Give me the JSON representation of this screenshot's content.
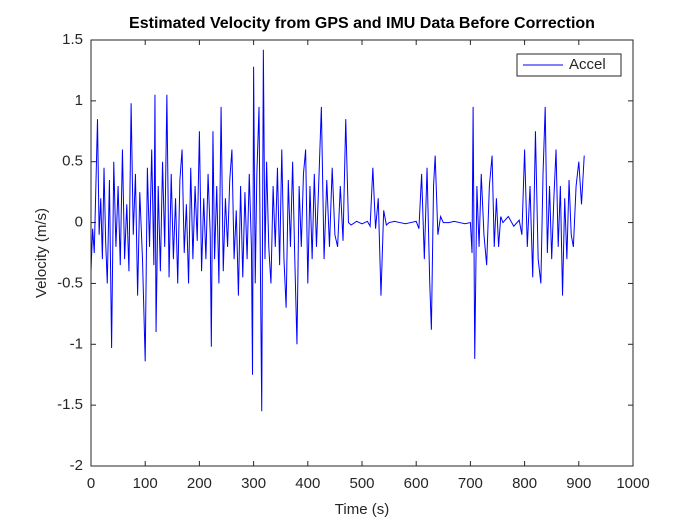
{
  "chart_data": {
    "type": "line",
    "title": "Estimated Velocity from GPS and IMU Data Before Correction",
    "x_label": "Time (s)",
    "y_label": "Velocity (m/s)",
    "xlim": [
      0,
      1000
    ],
    "xticks": [
      0,
      100,
      200,
      300,
      400,
      500,
      600,
      700,
      800,
      900,
      1000
    ],
    "ylim": [
      -2,
      1.5
    ],
    "yticks": [
      -2,
      -1.5,
      -1,
      -0.5,
      0,
      0.5,
      1,
      1.5
    ],
    "legend_position": "top-right",
    "grid": false,
    "series": [
      {
        "name": "Accel",
        "color": "#0000ff",
        "x": [
          0,
          3,
          6,
          9,
          12,
          15,
          18,
          21,
          24,
          27,
          30,
          34,
          38,
          42,
          46,
          50,
          54,
          58,
          62,
          66,
          70,
          74,
          78,
          82,
          86,
          90,
          95,
          100,
          104,
          108,
          112,
          116,
          118,
          120,
          124,
          128,
          132,
          136,
          140,
          144,
          148,
          152,
          156,
          160,
          164,
          168,
          172,
          176,
          180,
          184,
          188,
          192,
          196,
          200,
          204,
          208,
          212,
          216,
          220,
          222,
          225,
          228,
          232,
          236,
          240,
          244,
          248,
          252,
          256,
          260,
          264,
          268,
          272,
          276,
          280,
          284,
          288,
          292,
          296,
          298,
          300,
          303,
          306,
          310,
          313,
          315,
          318,
          321,
          324,
          328,
          332,
          336,
          340,
          344,
          348,
          352,
          356,
          360,
          364,
          368,
          372,
          376,
          380,
          384,
          388,
          392,
          396,
          400,
          404,
          408,
          412,
          416,
          420,
          425,
          430,
          435,
          440,
          445,
          450,
          455,
          460,
          465,
          470,
          475,
          480,
          490,
          500,
          510,
          515,
          520,
          525,
          530,
          535,
          540,
          545,
          550,
          560,
          570,
          580,
          590,
          600,
          605,
          610,
          615,
          620,
          625,
          628,
          632,
          635,
          640,
          645,
          650,
          660,
          670,
          680,
          690,
          700,
          703,
          705,
          708,
          712,
          716,
          720,
          725,
          730,
          735,
          740,
          744,
          748,
          752,
          756,
          760,
          770,
          780,
          790,
          795,
          800,
          805,
          810,
          815,
          820,
          825,
          830,
          834,
          838,
          842,
          846,
          850,
          854,
          858,
          862,
          866,
          870,
          874,
          878,
          882,
          886,
          890,
          895,
          900,
          905,
          910
        ],
        "values": [
          -0.4,
          -0.05,
          -0.25,
          0.3,
          0.85,
          -0.1,
          0.2,
          -0.3,
          0.45,
          -0.15,
          -0.5,
          0.35,
          -1.03,
          0.5,
          -0.2,
          0.3,
          -0.35,
          0.6,
          -0.3,
          0.15,
          -0.4,
          0.98,
          -0.1,
          0.4,
          -0.6,
          0.25,
          -0.3,
          -1.14,
          0.45,
          -0.2,
          0.6,
          -0.35,
          1.05,
          -0.9,
          0.3,
          -0.4,
          0.5,
          -0.2,
          1.05,
          -0.45,
          0.4,
          -0.3,
          0.2,
          -0.5,
          0.35,
          0.6,
          -0.25,
          0.15,
          -0.5,
          0.45,
          -0.3,
          0.3,
          -0.15,
          0.75,
          -0.4,
          0.2,
          -0.3,
          0.4,
          -0.1,
          -1.02,
          0.75,
          -0.3,
          0.3,
          -0.5,
          0.95,
          -0.4,
          0.2,
          -0.2,
          0.35,
          0.6,
          -0.3,
          0.1,
          -0.6,
          0.3,
          -0.45,
          0.25,
          -0.3,
          0.4,
          -0.2,
          -1.25,
          1.28,
          -0.5,
          0.4,
          0.95,
          -0.6,
          -1.55,
          1.42,
          -0.3,
          0.5,
          -0.2,
          -0.5,
          0.3,
          -0.2,
          0.45,
          -0.35,
          0.6,
          -0.3,
          -0.7,
          0.35,
          -0.2,
          0.5,
          -0.3,
          -1.0,
          0.3,
          -0.2,
          0.4,
          0.6,
          -0.5,
          0.3,
          -0.3,
          0.4,
          -0.2,
          0.3,
          0.95,
          -0.3,
          0.35,
          -0.2,
          0.45,
          -0.1,
          -0.2,
          0.3,
          -0.15,
          0.85,
          0.0,
          -0.02,
          0.01,
          -0.01,
          0.01,
          -0.03,
          0.45,
          -0.05,
          0.2,
          -0.6,
          0.1,
          -0.02,
          0.0,
          0.01,
          0.0,
          -0.01,
          0.0,
          0.01,
          -0.05,
          0.4,
          -0.3,
          0.45,
          -0.5,
          -0.88,
          0.3,
          0.55,
          -0.1,
          0.05,
          0.0,
          0.0,
          0.01,
          0.0,
          -0.01,
          0.0,
          -0.25,
          0.95,
          -1.12,
          0.3,
          -0.2,
          0.4,
          -0.1,
          -0.35,
          0.3,
          0.55,
          -0.2,
          0.2,
          -0.2,
          0.05,
          0.0,
          0.05,
          -0.03,
          0.02,
          -0.1,
          0.6,
          -0.2,
          0.3,
          -0.45,
          0.75,
          -0.3,
          -0.5,
          0.4,
          0.95,
          -0.25,
          0.3,
          -0.3,
          0.2,
          0.6,
          -0.2,
          0.3,
          -0.6,
          0.2,
          -0.3,
          0.35,
          -0.1,
          -0.2,
          0.3,
          0.5,
          0.15,
          0.55
        ]
      }
    ]
  }
}
